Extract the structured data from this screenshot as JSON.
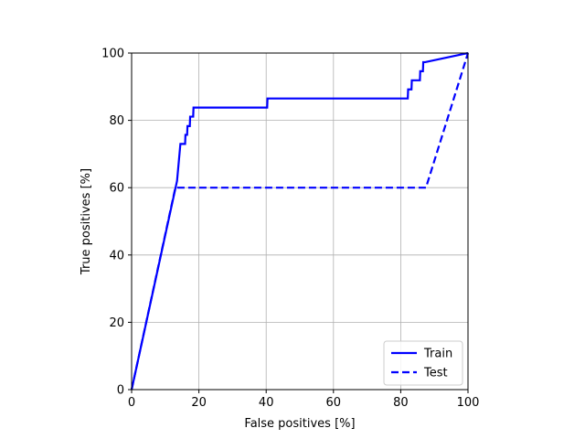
{
  "chart_data": {
    "type": "line",
    "title": "",
    "xlabel": "False positives [%]",
    "ylabel": "True positives [%]",
    "xlim": [
      0,
      100
    ],
    "ylim": [
      0,
      100
    ],
    "xticks": [
      0,
      20,
      40,
      60,
      80,
      100
    ],
    "yticks": [
      0,
      20,
      40,
      60,
      80,
      100
    ],
    "grid": true,
    "legend_position": "lower-right",
    "series": [
      {
        "name": "Train",
        "color": "#0000ff",
        "style": "solid",
        "x": [
          0,
          13.5,
          14.5,
          15,
          15.9,
          16,
          16.5,
          16.6,
          17.3,
          17.4,
          18.3,
          18.4,
          40.3,
          40.4,
          82.1,
          82.2,
          83.2,
          83.3,
          85.7,
          85.8,
          86.6,
          86.7,
          87.3,
          100
        ],
        "y": [
          0,
          62,
          73,
          73,
          73,
          75.7,
          75.7,
          78.3,
          78.3,
          81.1,
          81.1,
          83.8,
          83.8,
          86.5,
          86.5,
          89.2,
          89.2,
          91.9,
          91.9,
          94.6,
          94.6,
          97.3,
          97.3,
          100
        ]
      },
      {
        "name": "Test",
        "color": "#0000ff",
        "style": "dashed",
        "x": [
          0,
          13,
          87.5,
          100
        ],
        "y": [
          0,
          60,
          60,
          100
        ]
      }
    ]
  }
}
